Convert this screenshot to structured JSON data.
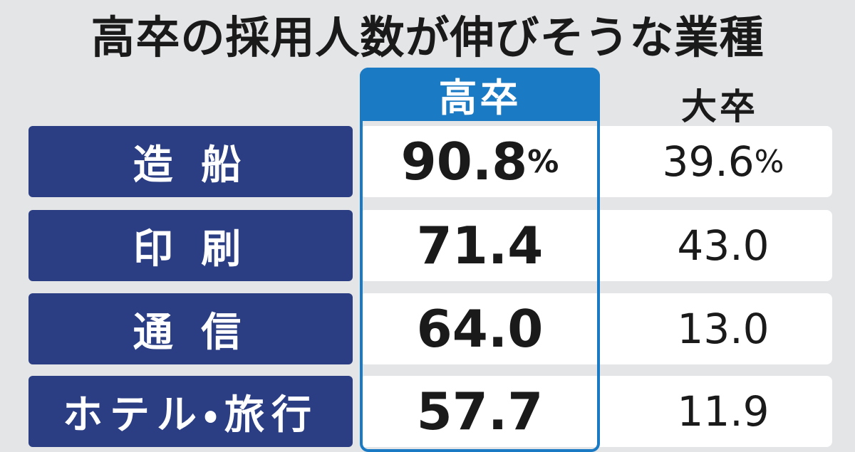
{
  "header": {
    "title": "高卒の採用人数が伸びそうな業種"
  },
  "table": {
    "columns": [
      "高卒",
      "大卒"
    ],
    "unit": "%",
    "rows": [
      {
        "label": "造 船",
        "high_school": "90.8",
        "university": "39.6"
      },
      {
        "label": "印 刷",
        "high_school": "71.4",
        "university": "43.0"
      },
      {
        "label": "通 信",
        "high_school": "64.0",
        "university": "13.0"
      },
      {
        "label": "ホテル・旅行",
        "high_school": "57.7",
        "university": "11.9"
      }
    ]
  }
}
